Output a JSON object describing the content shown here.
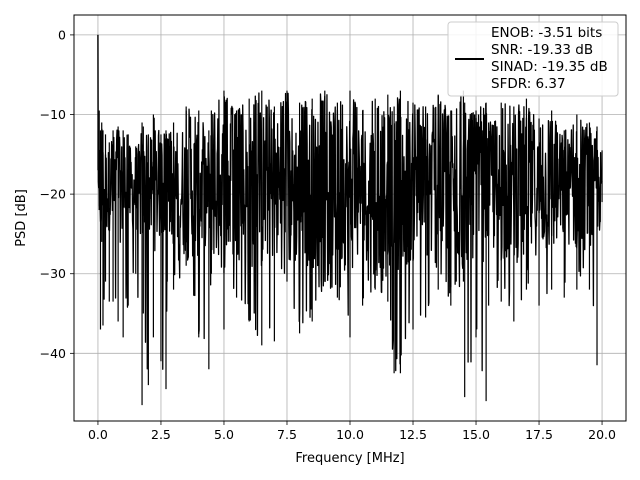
{
  "chart_data": {
    "type": "line",
    "title": "",
    "xlabel": "Frequency [MHz]",
    "ylabel": "PSD [dB]",
    "xlim": [
      -0.95,
      20.95
    ],
    "ylim": [
      -48.5,
      2.5
    ],
    "xticks": [
      0.0,
      2.5,
      5.0,
      7.5,
      10.0,
      12.5,
      15.0,
      17.5,
      20.0
    ],
    "xtick_labels": [
      "0.0",
      "2.5",
      "5.0",
      "7.5",
      "10.0",
      "12.5",
      "15.0",
      "17.5",
      "20.0"
    ],
    "yticks": [
      0,
      -10,
      -20,
      -30,
      -40
    ],
    "ytick_labels": [
      "0",
      "−10",
      "−20",
      "−30",
      "−40"
    ],
    "grid": true,
    "legend_position": "top-right",
    "series": [
      {
        "name": "ENOB: -3.51 bits\nSNR: -19.33 dB\nSINAD: -19.35 dB\nSFDR: 6.37",
        "legend_lines": [
          "ENOB: -3.51 bits",
          "SNR: -19.33 dB",
          "SINAD: -19.35 dB",
          "SFDR: 6.37"
        ],
        "color": "#000000",
        "x": [
          0.0,
          0.05,
          0.1,
          0.15,
          0.2,
          0.3,
          0.45,
          0.6,
          0.8,
          1.0,
          1.2,
          1.5,
          1.75,
          1.8,
          2.0,
          2.2,
          2.5,
          2.7,
          2.75,
          3.0,
          3.5,
          4.0,
          4.4,
          4.5,
          5.0,
          5.5,
          6.0,
          6.5,
          7.0,
          7.5,
          8.0,
          8.5,
          9.0,
          9.5,
          10.0,
          10.5,
          11.0,
          11.5,
          11.75,
          12.0,
          12.5,
          13.0,
          13.5,
          14.0,
          14.5,
          14.55,
          15.0,
          15.4,
          15.5,
          16.0,
          16.5,
          17.0,
          17.5,
          18.0,
          18.5,
          19.0,
          19.5,
          19.8,
          20.0
        ],
        "upper": [
          0.0,
          -9.5,
          -12.0,
          -11.0,
          -12.0,
          -12.5,
          -13.5,
          -12.0,
          -11.5,
          -12.0,
          -12.5,
          -14.0,
          -11.0,
          -11.5,
          -12.5,
          -10.0,
          -12.5,
          -12.0,
          -13.0,
          -11.0,
          -9.0,
          -9.5,
          -12.0,
          -9.5,
          -7.0,
          -9.5,
          -8.0,
          -7.0,
          -9.0,
          -7.0,
          -8.5,
          -8.0,
          -7.0,
          -8.5,
          -7.0,
          -9.5,
          -8.0,
          -7.5,
          -9.0,
          -7.0,
          -8.5,
          -9.0,
          -7.5,
          -9.5,
          -7.0,
          -8.5,
          -9.5,
          -8.5,
          -11.0,
          -8.5,
          -9.0,
          -8.0,
          -10.5,
          -9.5,
          -12.0,
          -10.0,
          -11.0,
          -11.5,
          -14.5
        ],
        "lower": [
          -17.0,
          -22.0,
          -37.0,
          -26.0,
          -36.5,
          -31.0,
          -33.5,
          -33.5,
          -36.0,
          -38.0,
          -34.0,
          -30.0,
          -46.5,
          -35.0,
          -44.0,
          -38.0,
          -41.0,
          -44.5,
          -31.0,
          -32.0,
          -29.0,
          -38.0,
          -42.0,
          -30.0,
          -37.0,
          -33.0,
          -36.0,
          -39.0,
          -38.5,
          -31.0,
          -37.5,
          -36.0,
          -31.0,
          -33.0,
          -38.0,
          -34.0,
          -32.0,
          -33.5,
          -42.5,
          -42.5,
          -37.0,
          -35.5,
          -32.0,
          -34.0,
          -31.0,
          -45.5,
          -38.0,
          -46.0,
          -34.0,
          -33.5,
          -36.0,
          -32.0,
          -34.0,
          -32.0,
          -33.0,
          -32.0,
          -32.0,
          -41.5,
          -21.0
        ],
        "baseline": -19.5
      }
    ]
  }
}
